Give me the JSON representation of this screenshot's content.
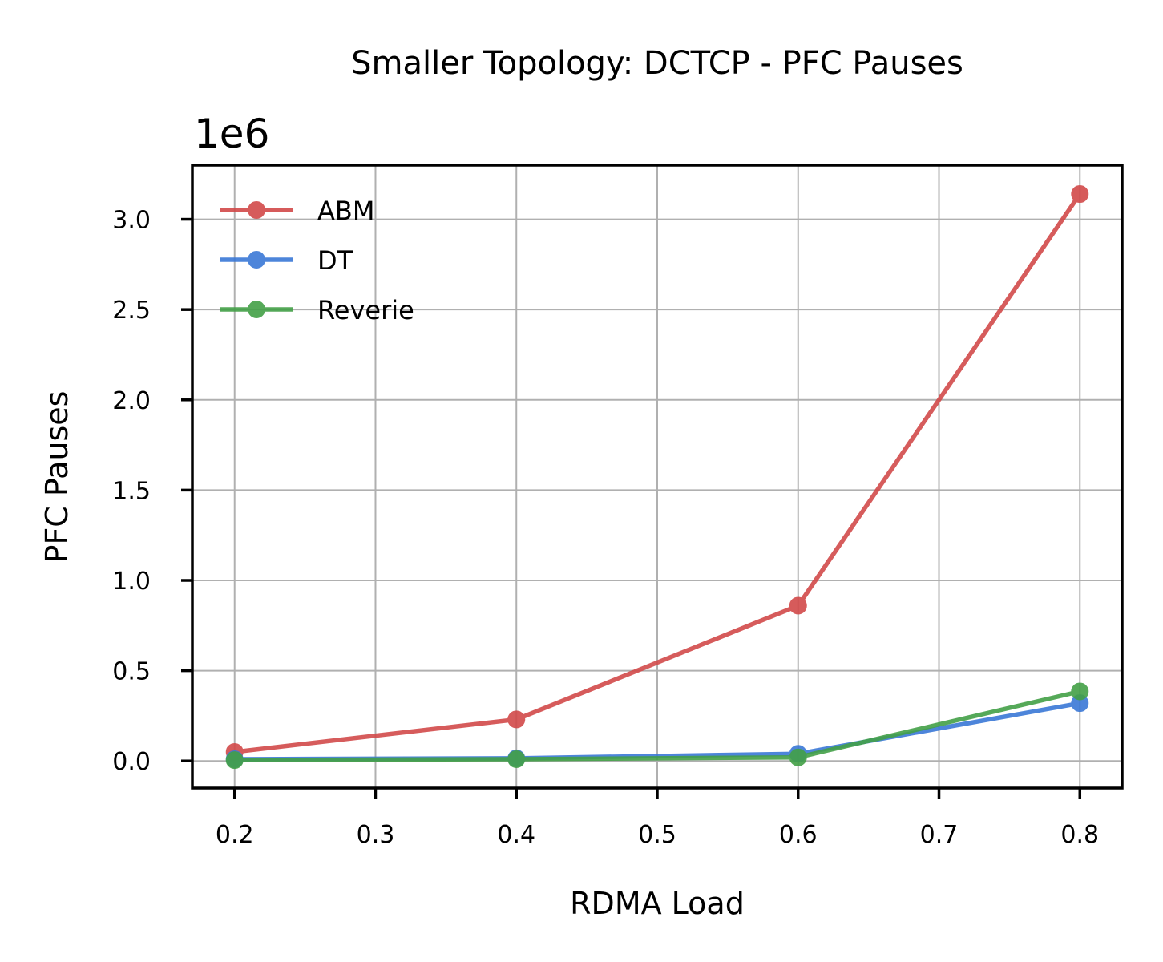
{
  "chart_data": {
    "type": "line",
    "title": "Smaller Topology: DCTCP - PFC Pauses",
    "xlabel": "RDMA Load",
    "ylabel": "PFC Pauses",
    "y_offset_label": "1e6",
    "xlim": [
      0.17,
      0.83
    ],
    "ylim": [
      -0.15,
      3.3
    ],
    "x_ticks": [
      0.2,
      0.3,
      0.4,
      0.5,
      0.6,
      0.7,
      0.8
    ],
    "x_tick_labels": [
      "0.2",
      "0.3",
      "0.4",
      "0.5",
      "0.6",
      "0.7",
      "0.8"
    ],
    "y_ticks": [
      0.0,
      0.5,
      1.0,
      1.5,
      2.0,
      2.5,
      3.0
    ],
    "y_tick_labels": [
      "0.0",
      "0.5",
      "1.0",
      "1.5",
      "2.0",
      "2.5",
      "3.0"
    ],
    "grid": true,
    "legend_position": "upper-left",
    "x": [
      0.2,
      0.4,
      0.6,
      0.8
    ],
    "series": [
      {
        "name": "ABM",
        "color": "#d24a4a",
        "values": [
          0.05,
          0.23,
          0.86,
          3.14
        ]
      },
      {
        "name": "DT",
        "color": "#3a78d6",
        "values": [
          0.01,
          0.015,
          0.04,
          0.32
        ]
      },
      {
        "name": "Reverie",
        "color": "#43a047",
        "values": [
          0.005,
          0.01,
          0.02,
          0.385
        ]
      }
    ]
  }
}
